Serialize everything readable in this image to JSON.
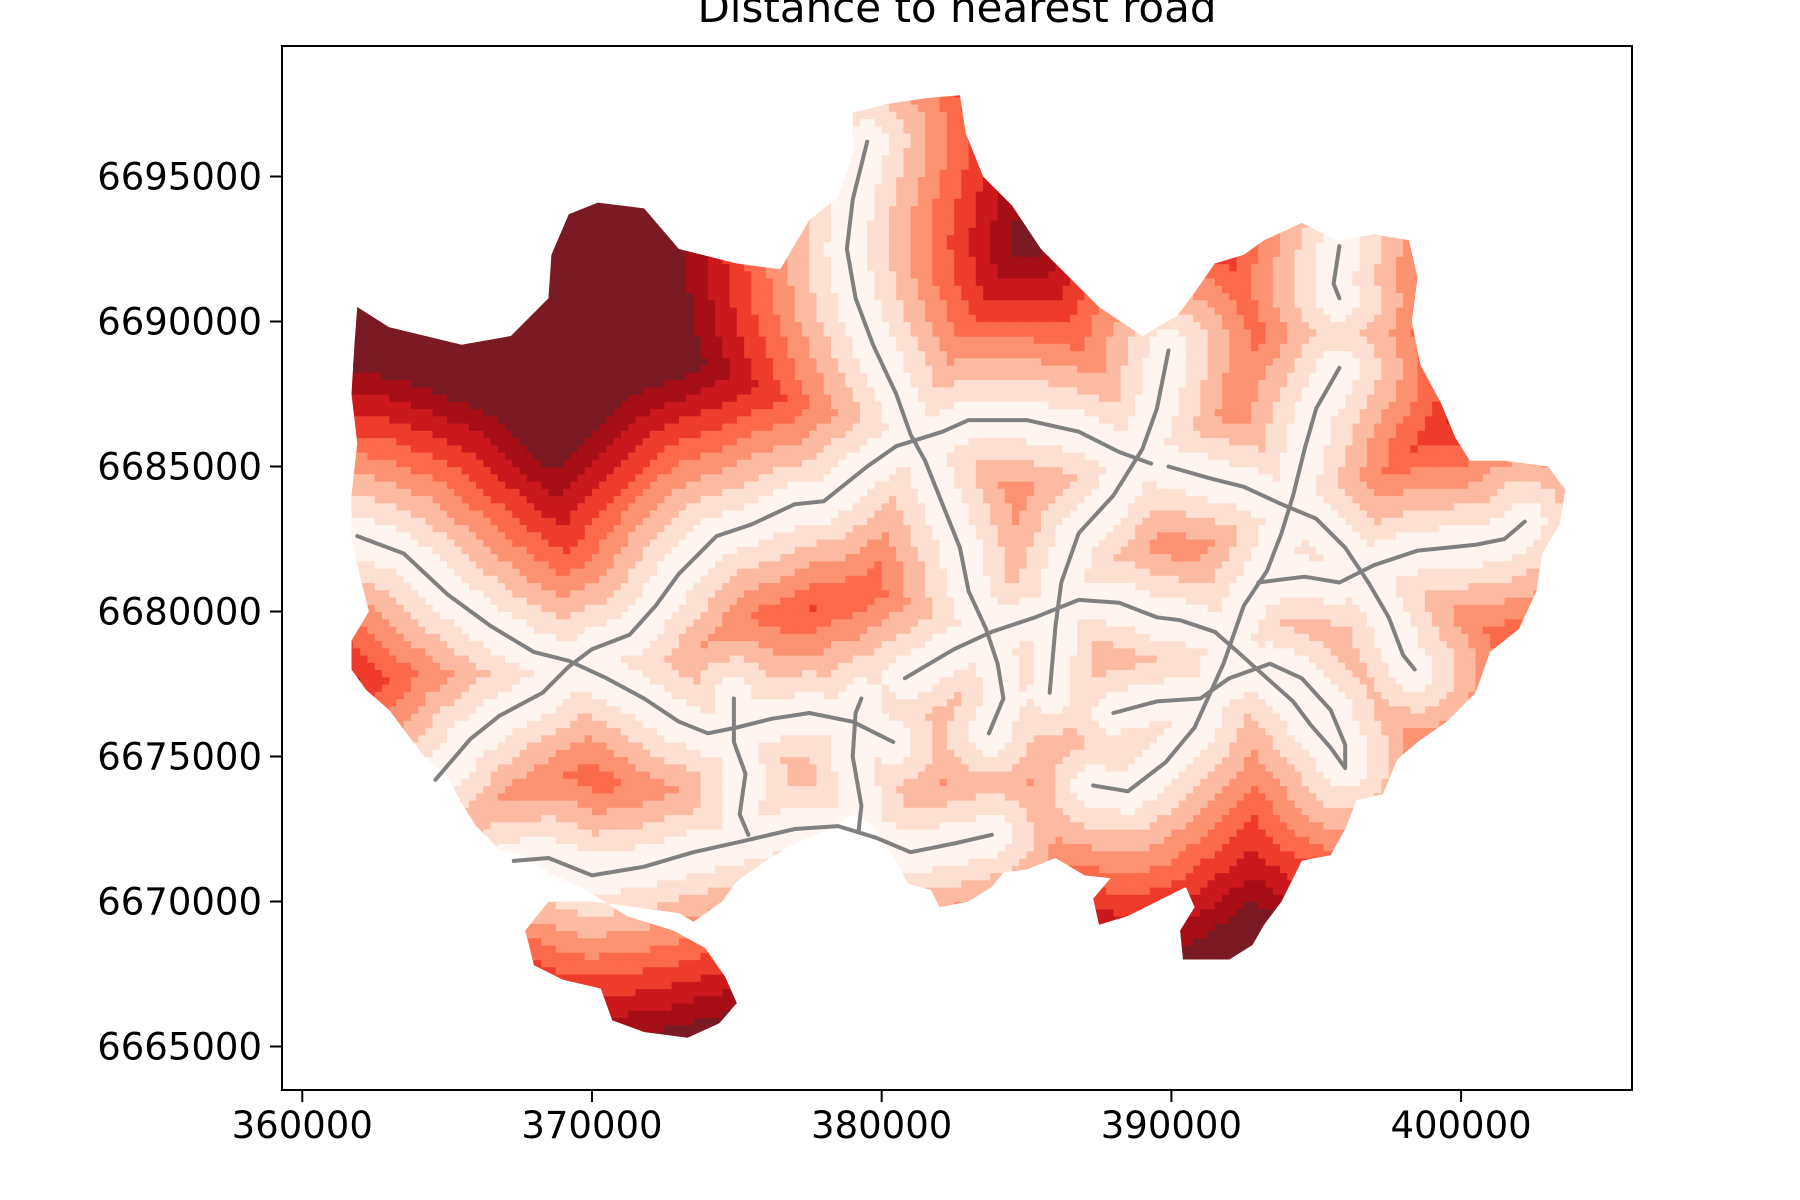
{
  "chart_data": {
    "type": "heatmap",
    "title": "Distance to nearest road",
    "xlabel": "",
    "ylabel": "",
    "xlim": [
      359300,
      405900
    ],
    "ylim": [
      6663500,
      6699500
    ],
    "xticks": [
      360000,
      370000,
      380000,
      390000,
      400000
    ],
    "yticks": [
      6665000,
      6670000,
      6675000,
      6680000,
      6685000,
      6690000,
      6695000
    ],
    "colormap": "Reds",
    "grid": false,
    "legend": "none",
    "colors": {
      "road": "#808080",
      "near": "#fff5f0",
      "far": "#67000d",
      "scale": [
        "#fff5f0",
        "#fee0d2",
        "#fcbba1",
        "#fc9272",
        "#fb6a4a",
        "#ef3b2c",
        "#cb181d",
        "#a50f15",
        "#7a1a24"
      ]
    },
    "boundary": [
      [
        361900,
        6690500
      ],
      [
        363000,
        6689800
      ],
      [
        365500,
        6689200
      ],
      [
        367200,
        6689500
      ],
      [
        368500,
        6690800
      ],
      [
        368600,
        6692300
      ],
      [
        369200,
        6693700
      ],
      [
        370200,
        6694100
      ],
      [
        371800,
        6693900
      ],
      [
        373000,
        6692500
      ],
      [
        375000,
        6692000
      ],
      [
        376500,
        6691800
      ],
      [
        377500,
        6693500
      ],
      [
        378500,
        6694300
      ],
      [
        379000,
        6695800
      ],
      [
        379000,
        6697200
      ],
      [
        380200,
        6697500
      ],
      [
        381500,
        6697700
      ],
      [
        382700,
        6697800
      ],
      [
        382900,
        6696500
      ],
      [
        383500,
        6695000
      ],
      [
        384500,
        6694000
      ],
      [
        385500,
        6692500
      ],
      [
        386500,
        6691500
      ],
      [
        387500,
        6690500
      ],
      [
        389000,
        6689500
      ],
      [
        390200,
        6690200
      ],
      [
        390800,
        6691000
      ],
      [
        391500,
        6692000
      ],
      [
        392500,
        6692300
      ],
      [
        393200,
        6692800
      ],
      [
        394500,
        6693400
      ],
      [
        395700,
        6692800
      ],
      [
        397000,
        6693000
      ],
      [
        398200,
        6692800
      ],
      [
        398500,
        6691500
      ],
      [
        398300,
        6690000
      ],
      [
        398600,
        6688500
      ],
      [
        399300,
        6687200
      ],
      [
        399800,
        6686000
      ],
      [
        400300,
        6685200
      ],
      [
        401500,
        6685200
      ],
      [
        403000,
        6685000
      ],
      [
        403600,
        6684200
      ],
      [
        403400,
        6683000
      ],
      [
        402800,
        6682000
      ],
      [
        402600,
        6680700
      ],
      [
        402000,
        6679400
      ],
      [
        401000,
        6678600
      ],
      [
        400500,
        6677200
      ],
      [
        399500,
        6676200
      ],
      [
        398500,
        6675500
      ],
      [
        397800,
        6674900
      ],
      [
        397300,
        6673700
      ],
      [
        396400,
        6673500
      ],
      [
        396000,
        6672500
      ],
      [
        395500,
        6671600
      ],
      [
        394500,
        6671400
      ],
      [
        394200,
        6670800
      ],
      [
        393800,
        6670000
      ],
      [
        393200,
        6669200
      ],
      [
        392800,
        6668500
      ],
      [
        392000,
        6668000
      ],
      [
        390400,
        6668000
      ],
      [
        390300,
        6669000
      ],
      [
        390800,
        6669800
      ],
      [
        390500,
        6670500
      ],
      [
        389500,
        6670000
      ],
      [
        388500,
        6669500
      ],
      [
        387500,
        6669200
      ],
      [
        387300,
        6670100
      ],
      [
        387900,
        6670800
      ],
      [
        387000,
        6670900
      ],
      [
        386000,
        6671500
      ],
      [
        385000,
        6671100
      ],
      [
        384200,
        6671000
      ],
      [
        383800,
        6670500
      ],
      [
        383000,
        6670000
      ],
      [
        382000,
        6669800
      ],
      [
        381700,
        6670400
      ],
      [
        380900,
        6670600
      ],
      [
        380500,
        6671400
      ],
      [
        379700,
        6672600
      ],
      [
        379000,
        6673000
      ],
      [
        378200,
        6672500
      ],
      [
        377000,
        6672000
      ],
      [
        376000,
        6671400
      ],
      [
        375000,
        6670700
      ],
      [
        374500,
        6670000
      ],
      [
        373500,
        6669300
      ],
      [
        373000,
        6669600
      ],
      [
        371500,
        6669800
      ],
      [
        370000,
        6670000
      ],
      [
        368500,
        6670000
      ],
      [
        367700,
        6669000
      ],
      [
        368000,
        6667800
      ],
      [
        369000,
        6667300
      ],
      [
        370300,
        6667000
      ],
      [
        370700,
        6665900
      ],
      [
        371800,
        6665500
      ],
      [
        373300,
        6665300
      ],
      [
        374400,
        6665800
      ],
      [
        375000,
        6666500
      ],
      [
        374600,
        6667400
      ],
      [
        373900,
        6668400
      ],
      [
        372800,
        6669000
      ],
      [
        371200,
        6669500
      ],
      [
        369800,
        6670400
      ],
      [
        368500,
        6671000
      ],
      [
        367600,
        6671600
      ],
      [
        366800,
        6671800
      ],
      [
        366000,
        6672600
      ],
      [
        365500,
        6673400
      ],
      [
        365000,
        6674300
      ],
      [
        364200,
        6675000
      ],
      [
        363600,
        6675800
      ],
      [
        363000,
        6676600
      ],
      [
        362200,
        6677300
      ],
      [
        361700,
        6678000
      ],
      [
        361700,
        6679000
      ],
      [
        362300,
        6680000
      ],
      [
        362000,
        6681200
      ],
      [
        361700,
        6682500
      ],
      [
        361700,
        6684000
      ],
      [
        361900,
        6685800
      ],
      [
        361700,
        6687500
      ],
      [
        361800,
        6689200
      ]
    ],
    "roads": [
      [
        [
          379500,
          6696200
        ],
        [
          379000,
          6694200
        ],
        [
          378800,
          6692500
        ],
        [
          379100,
          6690800
        ],
        [
          379700,
          6689200
        ],
        [
          380500,
          6687500
        ],
        [
          381000,
          6686100
        ],
        [
          381500,
          6685200
        ],
        [
          382100,
          6683700
        ],
        [
          382700,
          6682200
        ],
        [
          383000,
          6680700
        ],
        [
          383600,
          6679400
        ],
        [
          384000,
          6678200
        ],
        [
          384200,
          6677000
        ],
        [
          383700,
          6675800
        ]
      ],
      [
        [
          361900,
          6682600
        ],
        [
          363500,
          6682000
        ],
        [
          365000,
          6680600
        ],
        [
          366500,
          6679500
        ],
        [
          368000,
          6678600
        ],
        [
          369200,
          6678300
        ],
        [
          370500,
          6677700
        ],
        [
          371800,
          6677000
        ],
        [
          373000,
          6676200
        ],
        [
          374000,
          6675800
        ],
        [
          375000,
          6676000
        ],
        [
          376200,
          6676300
        ],
        [
          377500,
          6676500
        ],
        [
          379000,
          6676200
        ],
        [
          380400,
          6675500
        ]
      ],
      [
        [
          364600,
          6674200
        ],
        [
          365800,
          6675600
        ],
        [
          366800,
          6676400
        ],
        [
          368300,
          6677200
        ],
        [
          369200,
          6678100
        ],
        [
          370000,
          6678700
        ],
        [
          371300,
          6679200
        ],
        [
          372200,
          6680200
        ],
        [
          373000,
          6681300
        ],
        [
          374300,
          6682600
        ],
        [
          375500,
          6683000
        ],
        [
          377000,
          6683700
        ],
        [
          378000,
          6683800
        ],
        [
          379500,
          6685000
        ],
        [
          380500,
          6685700
        ],
        [
          382100,
          6686200
        ],
        [
          383000,
          6686600
        ],
        [
          385000,
          6686600
        ],
        [
          386800,
          6686200
        ],
        [
          388200,
          6685500
        ],
        [
          389300,
          6685100
        ]
      ],
      [
        [
          367300,
          6671400
        ],
        [
          368500,
          6671500
        ],
        [
          370000,
          6670900
        ],
        [
          371800,
          6671200
        ],
        [
          373500,
          6671700
        ],
        [
          375300,
          6672100
        ],
        [
          377000,
          6672500
        ],
        [
          378500,
          6672600
        ],
        [
          379800,
          6672200
        ],
        [
          381000,
          6671700
        ],
        [
          382500,
          6672000
        ],
        [
          383800,
          6672300
        ]
      ],
      [
        [
          379300,
          6677000
        ],
        [
          379100,
          6676500
        ],
        [
          379000,
          6675000
        ],
        [
          379300,
          6673300
        ],
        [
          379200,
          6672400
        ]
      ],
      [
        [
          380800,
          6677700
        ],
        [
          382500,
          6678700
        ],
        [
          383800,
          6679300
        ],
        [
          385300,
          6679800
        ],
        [
          386800,
          6680400
        ],
        [
          388200,
          6680300
        ],
        [
          389500,
          6679800
        ],
        [
          390300,
          6679700
        ],
        [
          391500,
          6679300
        ],
        [
          392300,
          6678600
        ],
        [
          393300,
          6677700
        ],
        [
          394200,
          6676900
        ],
        [
          394800,
          6676100
        ],
        [
          395500,
          6675300
        ],
        [
          396000,
          6674600
        ],
        [
          396000,
          6675400
        ],
        [
          395500,
          6676600
        ],
        [
          394500,
          6677700
        ],
        [
          393400,
          6678200
        ],
        [
          392000,
          6677700
        ],
        [
          391000,
          6677000
        ],
        [
          389500,
          6676900
        ],
        [
          388000,
          6676500
        ]
      ],
      [
        [
          389900,
          6689000
        ],
        [
          389500,
          6687000
        ],
        [
          389000,
          6685600
        ],
        [
          388000,
          6684000
        ],
        [
          386800,
          6682700
        ],
        [
          386200,
          6681000
        ],
        [
          386000,
          6679500
        ],
        [
          385800,
          6677200
        ]
      ],
      [
        [
          395800,
          6688400
        ],
        [
          395000,
          6687000
        ],
        [
          394600,
          6685600
        ],
        [
          394200,
          6684000
        ],
        [
          393800,
          6682700
        ],
        [
          393300,
          6681400
        ],
        [
          392500,
          6680200
        ],
        [
          391800,
          6678200
        ],
        [
          390800,
          6676000
        ],
        [
          389800,
          6674800
        ],
        [
          388500,
          6673800
        ],
        [
          387300,
          6674000
        ]
      ],
      [
        [
          389900,
          6685000
        ],
        [
          391300,
          6684600
        ],
        [
          392500,
          6684300
        ],
        [
          393800,
          6683700
        ],
        [
          395000,
          6683200
        ],
        [
          396000,
          6682200
        ],
        [
          396800,
          6681000
        ],
        [
          397500,
          6679800
        ],
        [
          398000,
          6678500
        ],
        [
          398400,
          6678000
        ]
      ],
      [
        [
          393000,
          6681000
        ],
        [
          394600,
          6681200
        ],
        [
          395800,
          6681000
        ],
        [
          397000,
          6681600
        ],
        [
          398500,
          6682100
        ],
        [
          399500,
          6682200
        ],
        [
          400500,
          6682300
        ],
        [
          401500,
          6682500
        ],
        [
          402200,
          6683100
        ]
      ],
      [
        [
          395800,
          6692600
        ],
        [
          395600,
          6691300
        ],
        [
          395800,
          6690800
        ]
      ],
      [
        [
          374900,
          6677000
        ],
        [
          374900,
          6675500
        ],
        [
          375300,
          6674400
        ],
        [
          375100,
          6673000
        ],
        [
          375400,
          6672300
        ]
      ]
    ]
  }
}
